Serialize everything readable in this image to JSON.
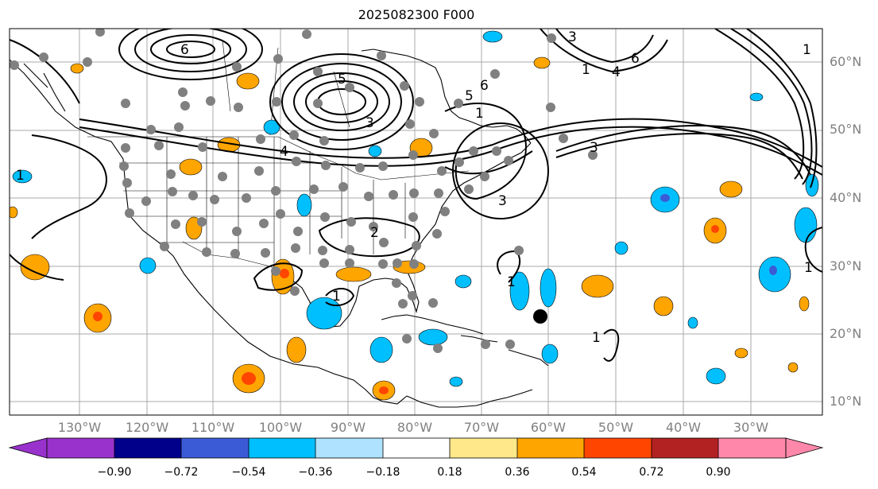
{
  "title": "2025082300 F000",
  "lat_labels": [
    "60°N",
    "50°N",
    "40°N",
    "30°N",
    "20°N",
    "10°N"
  ],
  "lon_labels": [
    "130°W",
    "120°W",
    "110°W",
    "100°W",
    "90°W",
    "80°W",
    "70°W",
    "60°W",
    "50°W",
    "40°W",
    "30°W"
  ],
  "colorbar": {
    "ticks": [
      "−0.90",
      "−0.72",
      "−0.54",
      "−0.36",
      "−0.18",
      "0.18",
      "0.36",
      "0.54",
      "0.72",
      "0.90"
    ],
    "colors": [
      "#9932cc",
      "#00008b",
      "#3b5bd6",
      "#00bfff",
      "#aee2ff",
      "#ffffff",
      "#ffe88a",
      "#ffa500",
      "#ff4500",
      "#b22222",
      "#ff88aa"
    ]
  },
  "contour_labels": [
    "6",
    "5",
    "6",
    "5",
    "1",
    "4",
    "3",
    "3",
    "2",
    "1",
    "1",
    "1",
    "1",
    "6",
    "4",
    "3",
    "1",
    "1",
    "1",
    "3"
  ],
  "marker_icon": "black-dot"
}
